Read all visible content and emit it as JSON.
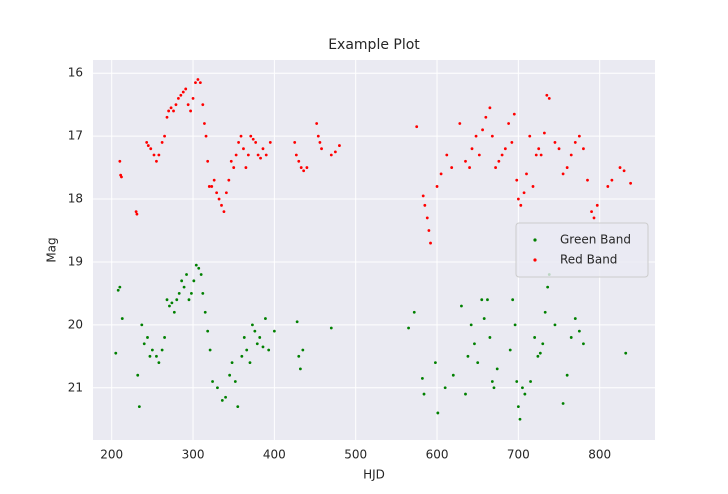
{
  "chart_data": {
    "type": "scatter",
    "title": "Example Plot",
    "x_label": "HJD",
    "y_label": "Mag",
    "xlim": [
      177,
      868
    ],
    "ylim": [
      21.83,
      15.79
    ],
    "xticks": [
      200,
      300,
      400,
      500,
      600,
      700,
      800
    ],
    "yticks": [
      16,
      17,
      18,
      19,
      20,
      21
    ],
    "grid": true,
    "legend": "center right",
    "series": [
      {
        "name": "Green Band",
        "color": "#008000",
        "x": [
          205,
          208,
          210,
          213,
          232,
          234,
          237,
          240,
          244,
          247,
          250,
          255,
          258,
          262,
          265,
          268,
          271,
          274,
          277,
          280,
          283,
          286,
          289,
          292,
          295,
          298,
          301,
          304,
          307,
          310,
          312,
          315,
          318,
          321,
          324,
          330,
          336,
          340,
          345,
          348,
          352,
          355,
          360,
          363,
          366,
          370,
          373,
          376,
          379,
          382,
          386,
          389,
          393,
          400,
          428,
          430,
          432,
          435,
          470,
          565,
          572,
          582,
          584,
          598,
          601,
          610,
          620,
          630,
          635,
          638,
          642,
          646,
          650,
          655,
          658,
          662,
          665,
          668,
          670,
          674,
          690,
          693,
          696,
          698,
          700,
          702,
          705,
          708,
          715,
          720,
          724,
          727,
          730,
          733,
          736,
          738,
          745,
          755,
          760,
          765,
          770,
          775,
          780,
          832
        ],
        "values": [
          20.45,
          19.45,
          19.4,
          19.9,
          20.8,
          21.3,
          20.0,
          20.3,
          20.2,
          20.5,
          20.4,
          20.5,
          20.6,
          20.4,
          20.2,
          19.6,
          19.7,
          19.65,
          19.8,
          19.6,
          19.5,
          19.3,
          19.4,
          19.2,
          19.6,
          19.5,
          19.3,
          19.05,
          19.1,
          19.2,
          19.5,
          19.8,
          20.1,
          20.4,
          20.9,
          21.0,
          21.2,
          21.15,
          20.8,
          20.6,
          20.9,
          21.3,
          20.5,
          20.2,
          20.4,
          20.6,
          20.0,
          20.1,
          20.3,
          20.2,
          20.35,
          19.9,
          20.4,
          20.1,
          19.95,
          20.5,
          20.7,
          20.4,
          20.05,
          20.05,
          19.8,
          20.85,
          21.1,
          20.6,
          21.4,
          21.0,
          20.8,
          19.7,
          21.1,
          20.5,
          20.0,
          20.3,
          20.6,
          19.6,
          19.9,
          19.6,
          20.2,
          20.9,
          21.0,
          20.7,
          20.4,
          19.6,
          20.0,
          20.9,
          21.3,
          21.5,
          21.0,
          21.1,
          20.9,
          20.2,
          20.5,
          20.45,
          20.3,
          19.8,
          19.4,
          19.2,
          20.0,
          21.25,
          20.8,
          20.2,
          19.9,
          20.1,
          20.3,
          20.45
        ]
      },
      {
        "name": "Red Band",
        "color": "#ff0000",
        "x": [
          210,
          211,
          212,
          230,
          231,
          243,
          245,
          248,
          252,
          255,
          258,
          262,
          265,
          268,
          270,
          273,
          276,
          279,
          282,
          285,
          288,
          291,
          294,
          297,
          300,
          303,
          306,
          309,
          312,
          314,
          316,
          318,
          320,
          323,
          326,
          329,
          332,
          335,
          338,
          341,
          344,
          347,
          350,
          353,
          356,
          359,
          362,
          365,
          368,
          371,
          374,
          377,
          380,
          383,
          386,
          390,
          395,
          425,
          427,
          430,
          433,
          436,
          440,
          452,
          454,
          456,
          458,
          470,
          475,
          480,
          575,
          583,
          585,
          588,
          590,
          592,
          600,
          605,
          612,
          618,
          628,
          635,
          640,
          643,
          648,
          652,
          656,
          660,
          665,
          668,
          672,
          676,
          680,
          684,
          688,
          692,
          695,
          698,
          700,
          703,
          707,
          710,
          714,
          718,
          722,
          725,
          728,
          732,
          735,
          738,
          745,
          750,
          755,
          760,
          765,
          770,
          775,
          780,
          785,
          790,
          793,
          797,
          810,
          815,
          825,
          830,
          838
        ],
        "values": [
          17.4,
          17.62,
          17.65,
          18.2,
          18.24,
          17.1,
          17.15,
          17.2,
          17.3,
          17.4,
          17.3,
          17.1,
          17.0,
          16.7,
          16.6,
          16.55,
          16.6,
          16.5,
          16.4,
          16.35,
          16.3,
          16.25,
          16.5,
          16.6,
          16.4,
          16.15,
          16.1,
          16.15,
          16.5,
          16.8,
          17.0,
          17.4,
          17.8,
          17.8,
          17.7,
          17.9,
          18.0,
          18.1,
          18.2,
          17.9,
          17.7,
          17.4,
          17.5,
          17.3,
          17.1,
          17.0,
          17.2,
          17.5,
          17.3,
          17.0,
          17.05,
          17.1,
          17.3,
          17.35,
          17.2,
          17.3,
          17.1,
          17.1,
          17.3,
          17.4,
          17.5,
          17.55,
          17.5,
          16.8,
          17.0,
          17.1,
          17.2,
          17.3,
          17.25,
          17.15,
          16.85,
          17.95,
          18.1,
          18.3,
          18.5,
          18.7,
          17.8,
          17.6,
          17.3,
          17.5,
          16.8,
          17.4,
          17.5,
          17.2,
          17.0,
          17.3,
          16.9,
          16.7,
          16.55,
          17.0,
          17.5,
          17.4,
          17.3,
          17.2,
          16.8,
          17.1,
          16.65,
          17.7,
          18.0,
          18.1,
          17.9,
          17.6,
          17.0,
          17.8,
          17.3,
          17.2,
          17.3,
          16.95,
          16.35,
          16.4,
          17.1,
          17.2,
          17.6,
          17.5,
          17.3,
          17.1,
          17.0,
          17.2,
          17.7,
          18.2,
          18.3,
          18.1,
          17.8,
          17.7,
          17.5,
          17.55,
          17.75
        ]
      }
    ]
  }
}
